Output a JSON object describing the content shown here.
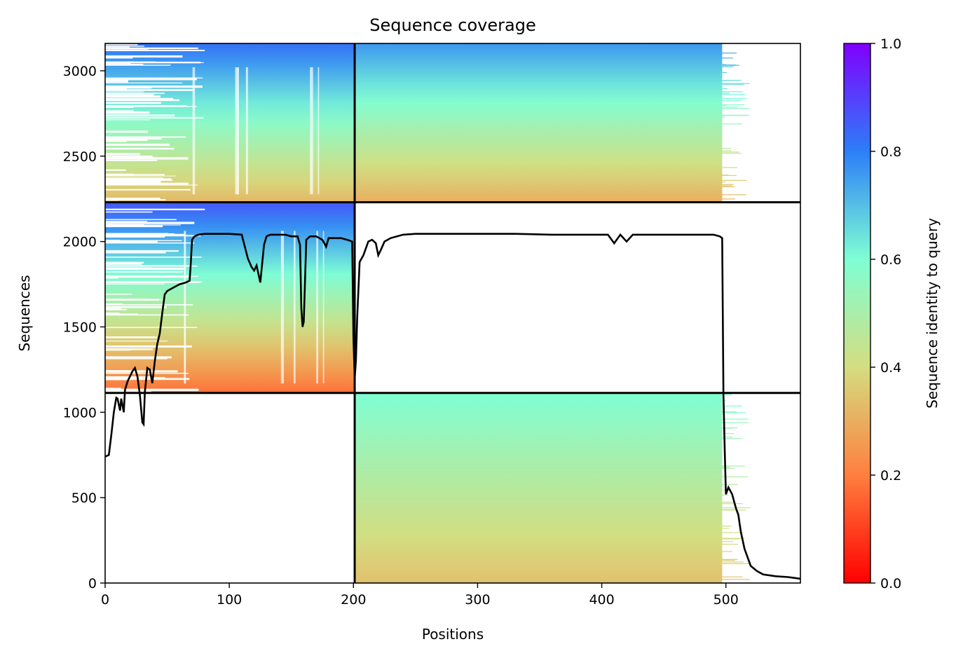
{
  "chart_data": {
    "type": "heatmap",
    "title": "Sequence coverage",
    "xlabel": "Positions",
    "ylabel": "Sequences",
    "xlim": [
      0,
      560
    ],
    "ylim": [
      0,
      3160
    ],
    "xticks": [
      0,
      100,
      200,
      300,
      400,
      500
    ],
    "yticks": [
      0,
      500,
      1000,
      1500,
      2000,
      2500,
      3000
    ],
    "colorbar": {
      "label": "Sequence identity to query",
      "colormap": "rainbow_r",
      "range": [
        0,
        1
      ],
      "ticks": [
        0.0,
        0.2,
        0.4,
        0.6,
        0.8,
        1.0
      ],
      "tick_labels": [
        "0.0",
        "0.2",
        "0.4",
        "0.6",
        "0.8",
        "1.0"
      ],
      "stops": [
        "#ff0000",
        "#ff7f3f",
        "#d4dd80",
        "#7fffd4",
        "#2c7ef7",
        "#8000ff"
      ]
    },
    "block_boundaries": {
      "x": [
        201
      ],
      "y": [
        1113,
        2230
      ]
    },
    "blocks": [
      {
        "x": [
          0,
          201
        ],
        "y": [
          2230,
          3160
        ],
        "identity_top": 0.82,
        "identity_bottom": 0.32,
        "fill": "partial"
      },
      {
        "x": [
          201,
          497
        ],
        "y": [
          2230,
          3160
        ],
        "identity_top": 0.76,
        "identity_bottom": 0.3,
        "fill": "dense"
      },
      {
        "x": [
          0,
          201
        ],
        "y": [
          1113,
          2230
        ],
        "identity_top": 0.86,
        "identity_bottom": 0.18,
        "fill": "partial"
      },
      {
        "x": [
          201,
          497
        ],
        "y": [
          0,
          1113
        ],
        "identity_top": 0.6,
        "identity_bottom": 0.34,
        "fill": "dense"
      }
    ],
    "series": [
      {
        "type": "line",
        "color": "#000000",
        "x": [
          0,
          3,
          5,
          7,
          9,
          10,
          12,
          13,
          15,
          16,
          18,
          20,
          22,
          24,
          26,
          28,
          30,
          31,
          32,
          34,
          36,
          38,
          40,
          42,
          44,
          46,
          48,
          50,
          55,
          60,
          65,
          68,
          69,
          70,
          72,
          75,
          80,
          90,
          100,
          110,
          115,
          118,
          120,
          122,
          125,
          128,
          130,
          133,
          140,
          145,
          150,
          155,
          157,
          158,
          159,
          160,
          162,
          165,
          170,
          175,
          178,
          180,
          185,
          190,
          195,
          199,
          200,
          201,
          202,
          203,
          205,
          208,
          212,
          215,
          218,
          220,
          222,
          225,
          230,
          240,
          250,
          270,
          300,
          330,
          360,
          380,
          400,
          405,
          410,
          415,
          420,
          425,
          430,
          440,
          450,
          460,
          470,
          480,
          490,
          495,
          497,
          498,
          499,
          500,
          502,
          505,
          508,
          510,
          512,
          515,
          518,
          520,
          525,
          530,
          540,
          550,
          555,
          560
        ],
        "y": [
          740,
          750,
          870,
          1000,
          1085,
          1080,
          1010,
          1080,
          1000,
          1130,
          1180,
          1210,
          1240,
          1260,
          1210,
          1100,
          940,
          930,
          1120,
          1260,
          1250,
          1170,
          1300,
          1400,
          1460,
          1580,
          1690,
          1710,
          1730,
          1750,
          1760,
          1770,
          1870,
          2010,
          2030,
          2040,
          2045,
          2045,
          2045,
          2040,
          1900,
          1850,
          1830,
          1860,
          1760,
          1980,
          2030,
          2040,
          2040,
          2040,
          2030,
          2030,
          1980,
          1610,
          1500,
          1530,
          2010,
          2030,
          2030,
          2010,
          1970,
          2020,
          2020,
          2020,
          2010,
          2000,
          1430,
          1200,
          1300,
          1550,
          1880,
          1920,
          2000,
          2010,
          1990,
          1920,
          1950,
          2000,
          2020,
          2040,
          2045,
          2045,
          2045,
          2045,
          2040,
          2040,
          2040,
          2040,
          1990,
          2040,
          2000,
          2040,
          2040,
          2040,
          2040,
          2040,
          2040,
          2040,
          2040,
          2030,
          2020,
          1100,
          800,
          520,
          560,
          520,
          440,
          400,
          300,
          200,
          140,
          100,
          70,
          50,
          40,
          35,
          30,
          25
        ]
      }
    ]
  }
}
